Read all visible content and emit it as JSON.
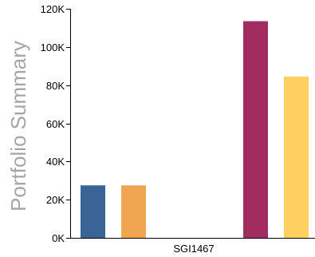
{
  "chart_data": {
    "type": "bar",
    "categories": [
      "SGI1467"
    ],
    "ylabel": "Portfolio Summary",
    "xlabel": "",
    "ylim": [
      0,
      120000
    ],
    "yticks": [
      0,
      20000,
      40000,
      60000,
      80000,
      100000,
      120000
    ],
    "ytick_labels": [
      "0K",
      "20K",
      "40K",
      "60K",
      "80K",
      "100K",
      "120K"
    ],
    "grid": false,
    "legend": "none",
    "series": [
      {
        "values": [
          27500
        ],
        "color": "#3a6496"
      },
      {
        "values": [
          27500
        ],
        "color": "#f0a550"
      },
      {
        "values": [
          0
        ],
        "color": "#8cc0e0"
      },
      {
        "values": [
          0
        ],
        "color": "#5a9b5a"
      },
      {
        "values": [
          113500
        ],
        "color": "#a02c60"
      },
      {
        "values": [
          84500
        ],
        "color": "#ffd060"
      }
    ]
  }
}
